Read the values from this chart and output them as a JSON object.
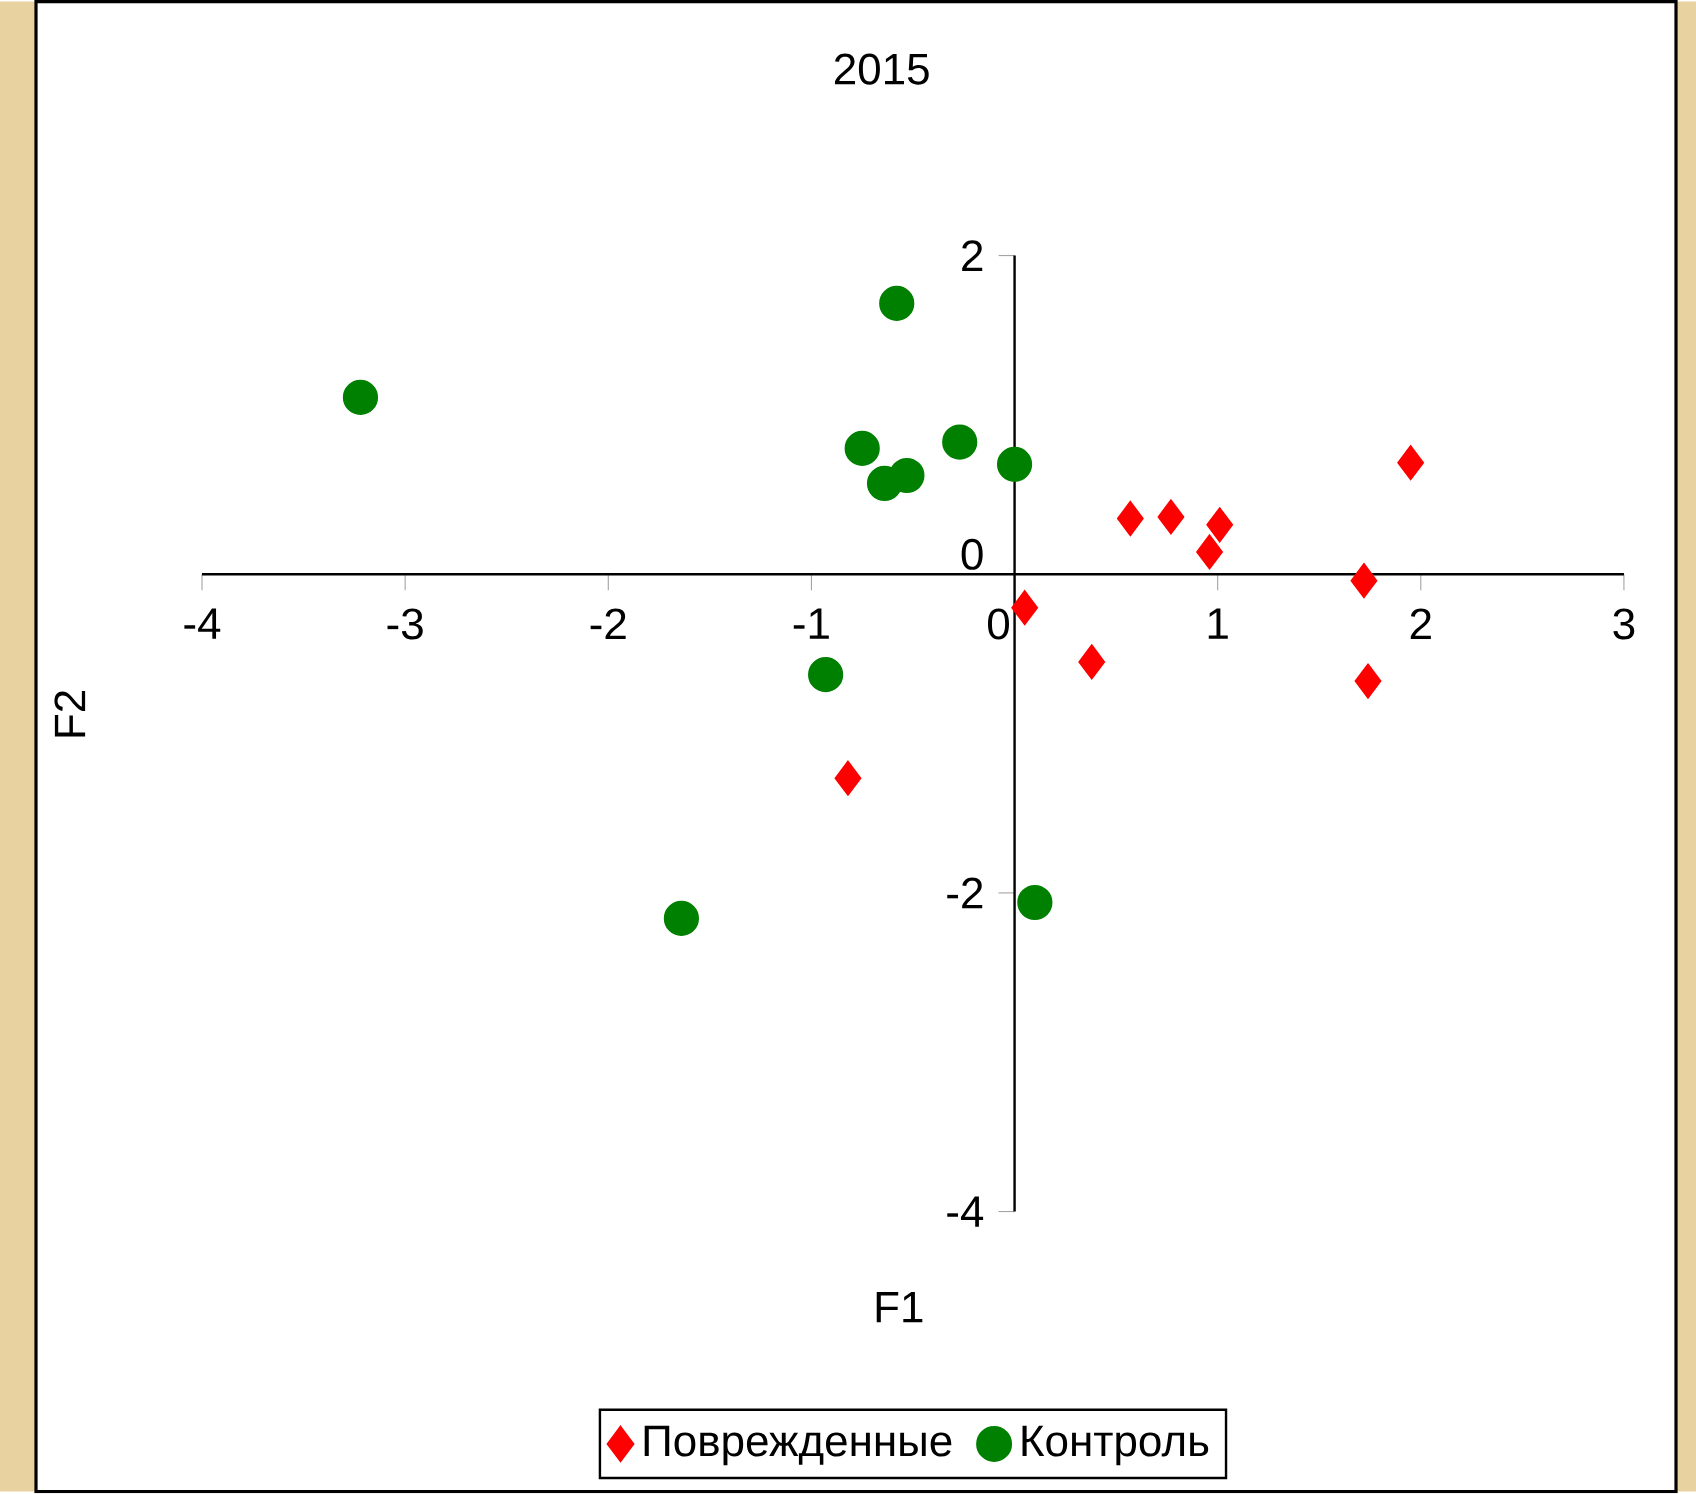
{
  "chart_data": {
    "type": "scatter",
    "title": "2015",
    "xlabel": "F1",
    "ylabel": "F2",
    "xlim": [
      -4,
      3
    ],
    "ylim": [
      -4,
      2
    ],
    "xticks": [
      -4,
      -3,
      -2,
      -1,
      0,
      1,
      2,
      3
    ],
    "yticks": [
      -4,
      -2,
      0,
      2
    ],
    "legend": "bottom",
    "series": [
      {
        "name": "Поврежденные",
        "color": "#ff0000",
        "marker": "diamond",
        "x": [
          0.57,
          0.77,
          1.01,
          0.96,
          1.95,
          1.72,
          1.74,
          0.05,
          0.38,
          -0.82
        ],
        "values": [
          0.35,
          0.36,
          0.31,
          0.14,
          0.7,
          -0.04,
          -0.67,
          -0.21,
          -0.55,
          -1.28
        ]
      },
      {
        "name": "Контроль",
        "color": "#008000",
        "marker": "circle",
        "x": [
          -3.22,
          -0.58,
          -0.75,
          -0.64,
          -0.53,
          -0.27,
          0.0,
          -0.93,
          -1.64,
          0.1
        ],
        "values": [
          1.11,
          1.7,
          0.79,
          0.57,
          0.62,
          0.83,
          0.69,
          -0.63,
          -2.16,
          -2.06
        ]
      }
    ]
  }
}
